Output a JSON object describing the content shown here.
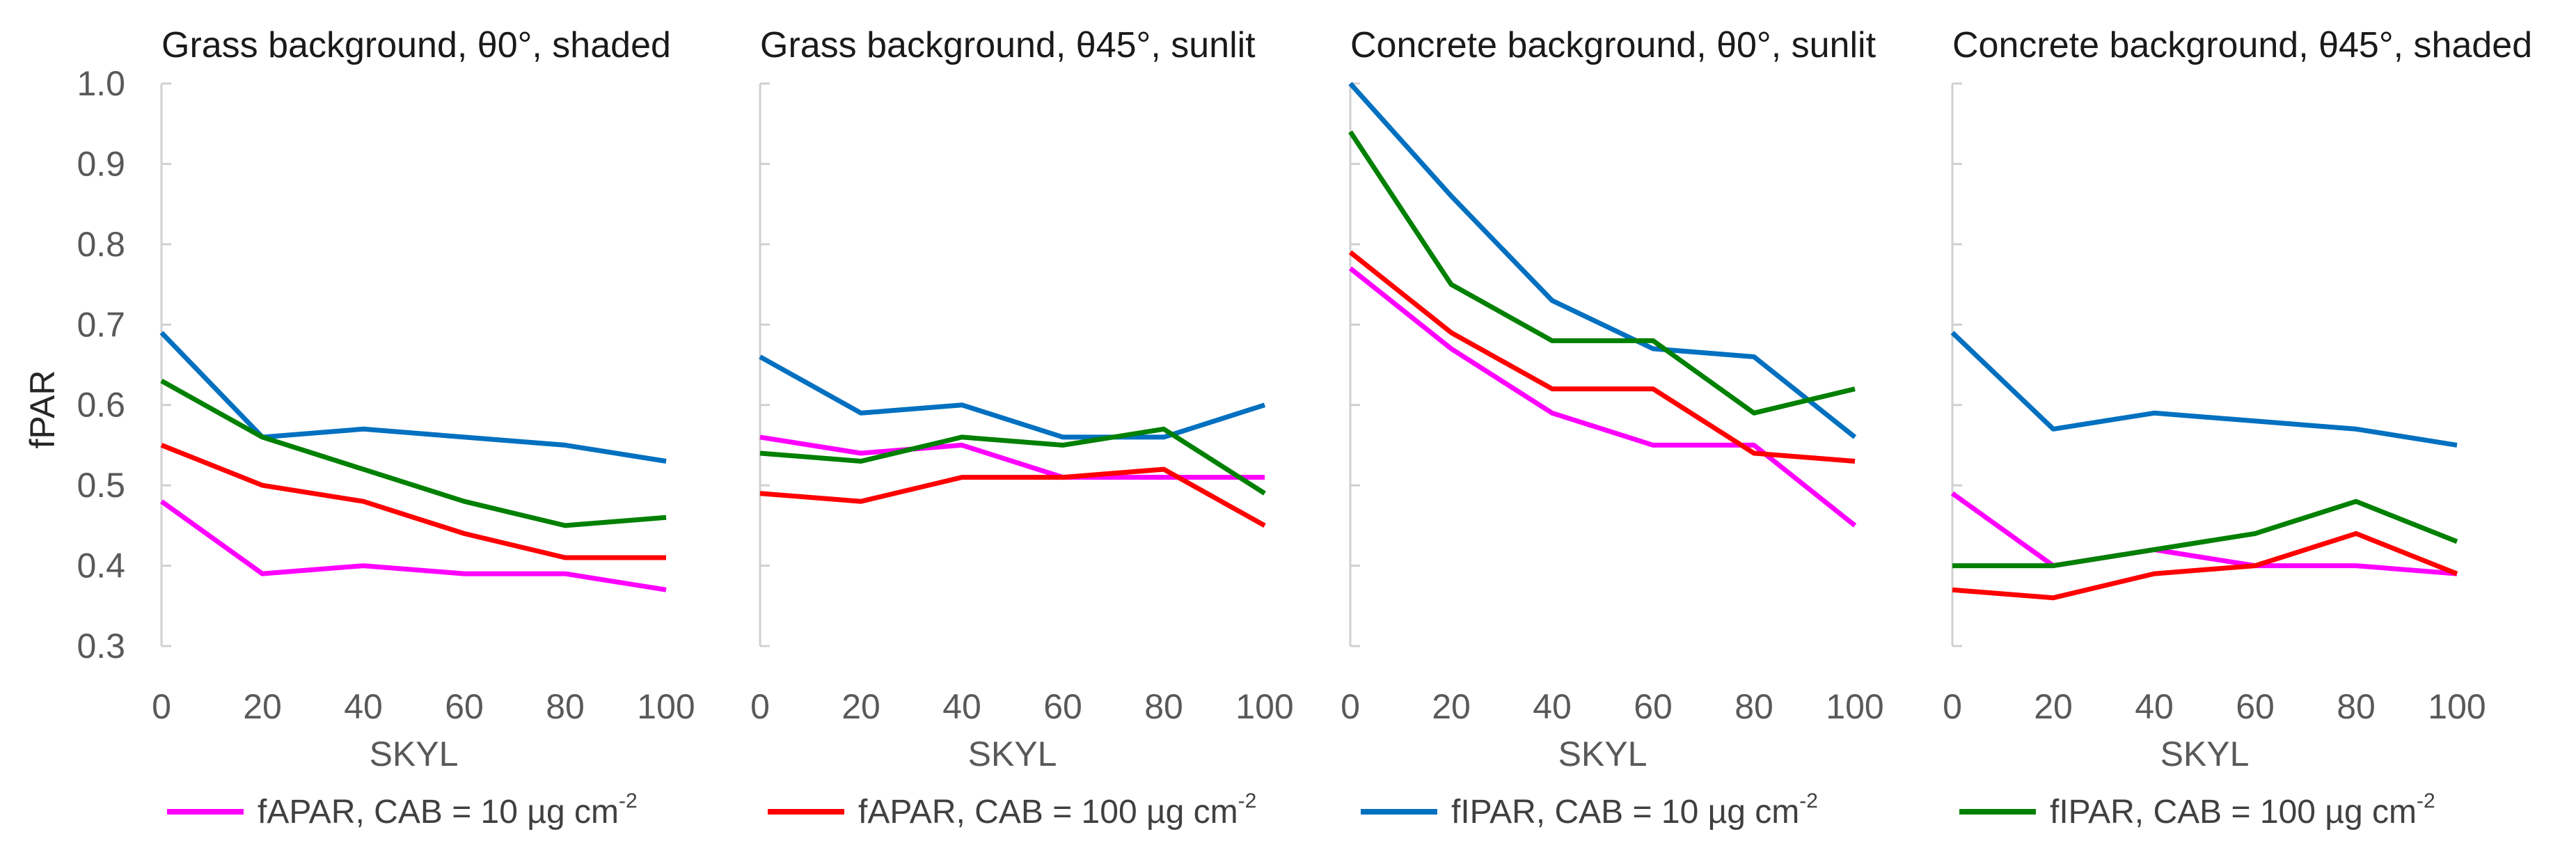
{
  "chart_data": {
    "type": "line",
    "ylabel": "fPAR",
    "ylim": [
      0.3,
      1.0
    ],
    "yticks": [
      "0.3",
      "0.4",
      "0.5",
      "0.6",
      "0.7",
      "0.8",
      "0.9",
      "1.0"
    ],
    "x": [
      0,
      20,
      40,
      60,
      80,
      100
    ],
    "xticks": [
      "0",
      "20",
      "40",
      "60",
      "80",
      "100"
    ],
    "xlim": [
      0,
      100
    ],
    "grid": false,
    "legend_position": "bottom",
    "legend": [
      {
        "label": "fAPAR, CAB = 10 µg cm",
        "sup": "-2",
        "color": "#ff00ff"
      },
      {
        "label": "fAPAR, CAB = 100 µg cm",
        "sup": "-2",
        "color": "#ff0000"
      },
      {
        "label": "fIPAR, CAB = 10 µg cm",
        "sup": "-2",
        "color": "#0070c0"
      },
      {
        "label": "fIPAR, CAB = 100 µg cm",
        "sup": "-2",
        "color": "#008000"
      }
    ],
    "panels": [
      {
        "title": "Grass background, θ0°, shaded",
        "xlabel": "SKYL",
        "series": [
          {
            "values": [
              0.48,
              0.39,
              0.4,
              0.39,
              0.39,
              0.37
            ]
          },
          {
            "values": [
              0.55,
              0.5,
              0.48,
              0.44,
              0.41,
              0.41
            ]
          },
          {
            "values": [
              0.69,
              0.56,
              0.57,
              0.56,
              0.55,
              0.53
            ]
          },
          {
            "values": [
              0.63,
              0.56,
              0.52,
              0.48,
              0.45,
              0.46
            ]
          }
        ]
      },
      {
        "title": "Grass background, θ45°, sunlit",
        "xlabel": "SKYL",
        "series": [
          {
            "values": [
              0.56,
              0.54,
              0.55,
              0.51,
              0.51,
              0.51
            ]
          },
          {
            "values": [
              0.49,
              0.48,
              0.51,
              0.51,
              0.52,
              0.45
            ]
          },
          {
            "values": [
              0.66,
              0.59,
              0.6,
              0.56,
              0.56,
              0.6
            ]
          },
          {
            "values": [
              0.54,
              0.53,
              0.56,
              0.55,
              0.57,
              0.49
            ]
          }
        ]
      },
      {
        "title": "Concrete background, θ0°, sunlit",
        "xlabel": "SKYL",
        "series": [
          {
            "values": [
              0.77,
              0.67,
              0.59,
              0.55,
              0.55,
              0.45
            ]
          },
          {
            "values": [
              0.79,
              0.69,
              0.62,
              0.62,
              0.54,
              0.53
            ]
          },
          {
            "values": [
              1.0,
              0.86,
              0.73,
              0.67,
              0.66,
              0.56
            ]
          },
          {
            "values": [
              0.94,
              0.75,
              0.68,
              0.68,
              0.59,
              0.62
            ]
          }
        ]
      },
      {
        "title": "Concrete background, θ45°, shaded",
        "xlabel": "SKYL",
        "series": [
          {
            "values": [
              0.49,
              0.4,
              0.42,
              0.4,
              0.4,
              0.39
            ]
          },
          {
            "values": [
              0.37,
              0.36,
              0.39,
              0.4,
              0.44,
              0.39
            ]
          },
          {
            "values": [
              0.69,
              0.57,
              0.59,
              0.58,
              0.57,
              0.55
            ]
          },
          {
            "values": [
              0.4,
              0.4,
              0.42,
              0.44,
              0.48,
              0.43
            ]
          }
        ]
      }
    ]
  }
}
